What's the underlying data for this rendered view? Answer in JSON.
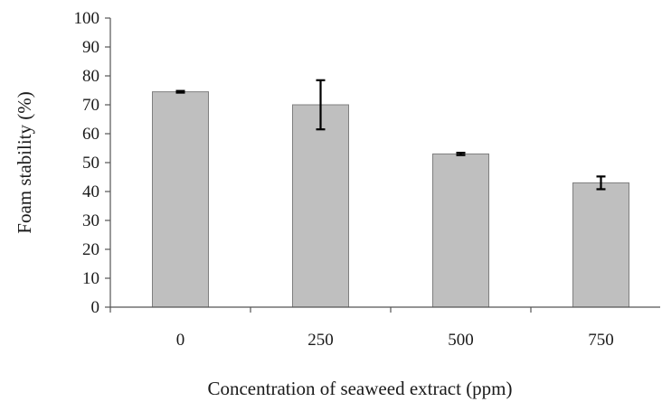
{
  "chart_data": {
    "type": "bar",
    "title": "",
    "xlabel": "Concentration of seaweed extract (ppm)",
    "ylabel": "Foam stability (%)",
    "categories": [
      "0",
      "250",
      "500",
      "750"
    ],
    "values": [
      74.5,
      70,
      53,
      43
    ],
    "error": [
      0.3,
      8.5,
      0.4,
      2.2
    ],
    "ylim": [
      0,
      100
    ],
    "yticks": [
      0,
      10,
      20,
      30,
      40,
      50,
      60,
      70,
      80,
      90,
      100
    ],
    "grid": false,
    "legend": "none",
    "colors": {
      "bar_fill": "#bfbfbf",
      "bar_stroke": "#7f7f7f",
      "error_bar": "#000000"
    }
  }
}
